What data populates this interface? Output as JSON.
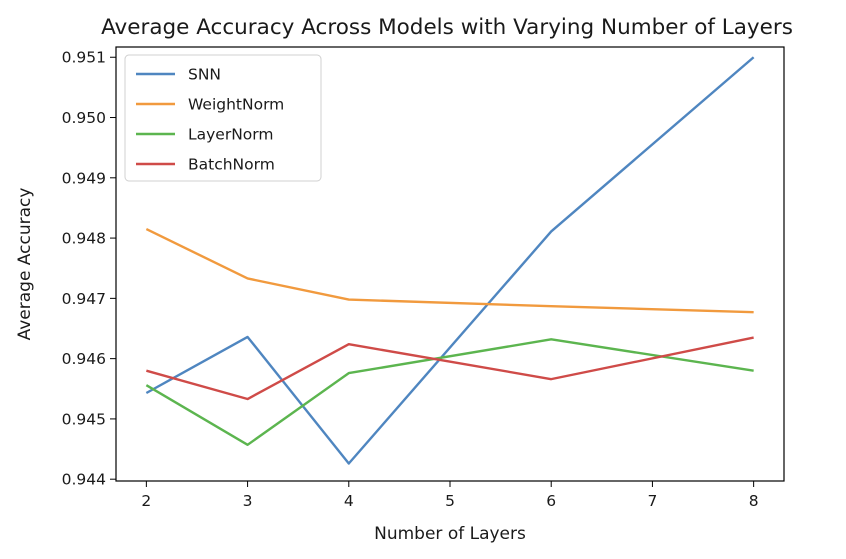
{
  "chart_data": {
    "type": "line",
    "title": "Average Accuracy Across Models with Varying Number of Layers",
    "xlabel": "Number of Layers",
    "ylabel": "Average Accuracy",
    "xlim": [
      1.7,
      8.3
    ],
    "ylim": [
      0.94397,
      0.95117
    ],
    "x_ticks": [
      2,
      3,
      4,
      5,
      6,
      7,
      8
    ],
    "y_ticks": [
      0.944,
      0.945,
      0.946,
      0.947,
      0.948,
      0.949,
      0.95,
      0.951
    ],
    "y_tick_labels": [
      "0.944",
      "0.945",
      "0.946",
      "0.947",
      "0.948",
      "0.949",
      "0.950",
      "0.951"
    ],
    "grid": false,
    "legend_position": "top-left",
    "x": [
      2,
      3,
      4,
      6,
      8
    ],
    "series": [
      {
        "name": "SNN",
        "color": "#4f86c0",
        "values": [
          0.94543,
          0.94636,
          0.94426,
          0.94811,
          0.951
        ]
      },
      {
        "name": "WeightNorm",
        "color": "#f19a3e",
        "values": [
          0.94815,
          0.94733,
          0.94698,
          0.94687,
          0.94677
        ]
      },
      {
        "name": "LayerNorm",
        "color": "#5cb54f",
        "values": [
          0.94556,
          0.94457,
          0.94576,
          0.94632,
          0.9458
        ]
      },
      {
        "name": "BatchNorm",
        "color": "#cf4b48",
        "values": [
          0.9458,
          0.94533,
          0.94624,
          0.94566,
          0.94635
        ]
      }
    ]
  }
}
